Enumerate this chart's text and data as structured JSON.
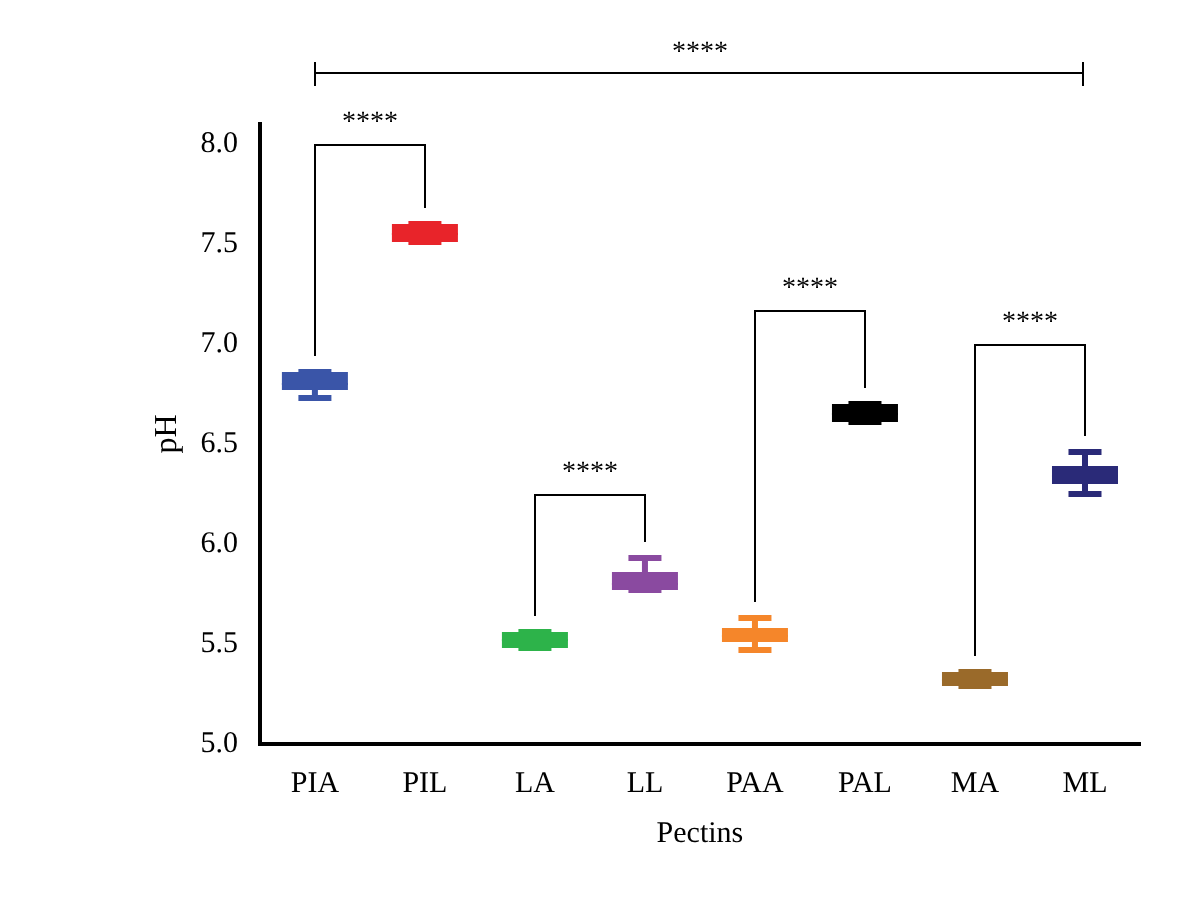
{
  "chart_data": {
    "type": "box",
    "xlabel": "Pectins",
    "ylabel": "pH",
    "categories": [
      "PIA",
      "PIL",
      "LA",
      "LL",
      "PAA",
      "PAL",
      "MA",
      "ML"
    ],
    "colors": [
      "#3a55a8",
      "#e8242a",
      "#2db34a",
      "#8a4aa0",
      "#f5862a",
      "#000000",
      "#9a6a2a",
      "#2a2a78"
    ],
    "boxes": [
      {
        "low": 6.73,
        "q1": 6.77,
        "median": 6.8,
        "q3": 6.86,
        "high": 6.86
      },
      {
        "low": 7.51,
        "q1": 7.51,
        "median": 7.55,
        "q3": 7.6,
        "high": 7.6
      },
      {
        "low": 5.48,
        "q1": 5.48,
        "median": 5.52,
        "q3": 5.56,
        "high": 5.56
      },
      {
        "low": 5.77,
        "q1": 5.77,
        "median": 5.8,
        "q3": 5.86,
        "high": 5.93
      },
      {
        "low": 5.47,
        "q1": 5.51,
        "median": 5.54,
        "q3": 5.58,
        "high": 5.63
      },
      {
        "low": 6.61,
        "q1": 6.61,
        "median": 6.65,
        "q3": 6.7,
        "high": 6.7
      },
      {
        "low": 5.29,
        "q1": 5.29,
        "median": 5.32,
        "q3": 5.36,
        "high": 5.36
      },
      {
        "low": 6.25,
        "q1": 6.3,
        "median": 6.34,
        "q3": 6.39,
        "high": 6.46
      }
    ],
    "ylim": [
      5,
      8.1
    ],
    "yticks": [
      {
        "value": 5,
        "label": "5.0"
      },
      {
        "value": 5.5,
        "label": "5.5"
      },
      {
        "value": 6,
        "label": "6.0"
      },
      {
        "value": 6.5,
        "label": "6.5"
      },
      {
        "value": 7,
        "label": "7.0"
      },
      {
        "value": 7.5,
        "label": "7.5"
      },
      {
        "value": 8,
        "label": "8.0"
      }
    ],
    "grid": false,
    "legend": false,
    "annotations": [
      "****",
      "****",
      "****",
      "****",
      "****"
    ]
  }
}
